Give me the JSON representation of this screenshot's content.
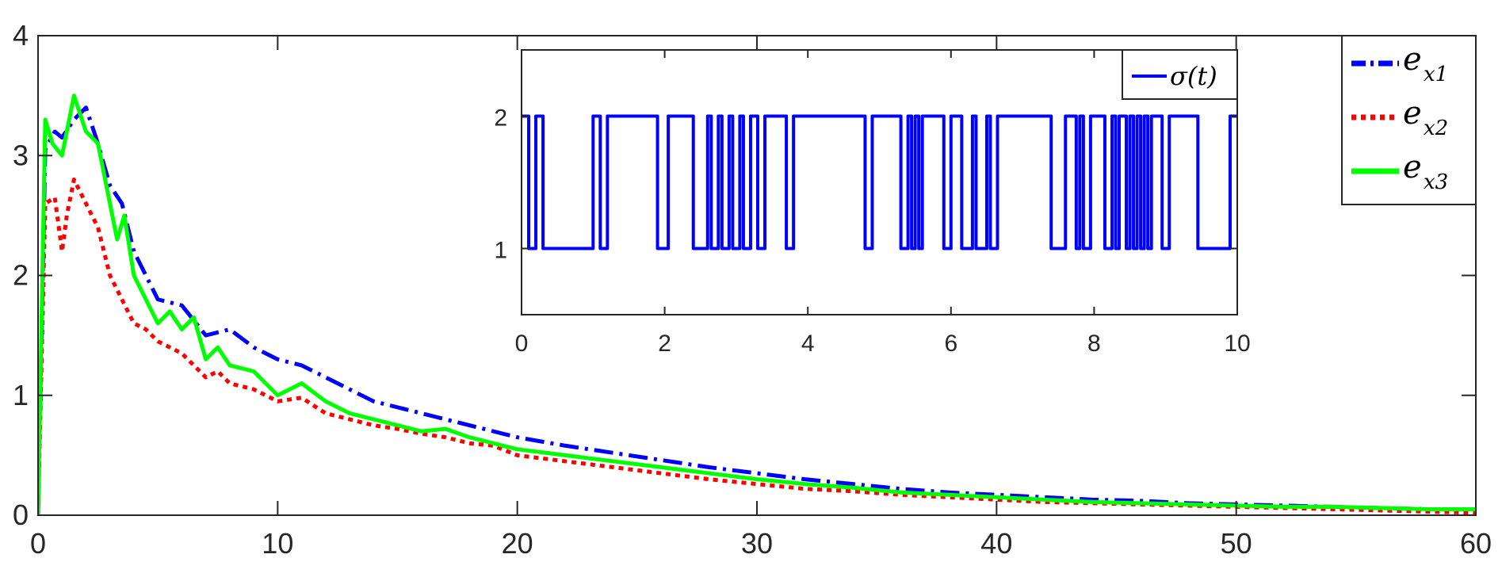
{
  "chart_data": [
    {
      "type": "line",
      "title": "",
      "xlabel": "",
      "ylabel": "",
      "xlim": [
        0,
        60
      ],
      "ylim": [
        0,
        4
      ],
      "xticks": [
        "0",
        "10",
        "20",
        "30",
        "40",
        "50",
        "60"
      ],
      "yticks": [
        "0",
        "1",
        "2",
        "3",
        "4"
      ],
      "grid": false,
      "legend_position": "top-right",
      "series": [
        {
          "name": "e_{x1}",
          "legend_main": "e",
          "legend_sub": "x1",
          "color": "#0000ff",
          "style": "dashdot",
          "x": [
            0,
            0.3,
            0.7,
            1.0,
            1.5,
            2.0,
            2.5,
            3.0,
            3.5,
            4.0,
            4.5,
            5.0,
            6.0,
            7.0,
            8.0,
            9.0,
            10.0,
            11.0,
            12.0,
            13.0,
            14.0,
            15.0,
            16.0,
            17.0,
            18.0,
            19.0,
            20.0,
            22.0,
            24.0,
            26.0,
            28.0,
            30.0,
            32.0,
            34.0,
            36.0,
            38.0,
            40.0,
            42.0,
            44.0,
            46.0,
            48.0,
            50.0,
            52.0,
            54.0,
            56.0,
            58.0,
            60.0
          ],
          "y": [
            0,
            3.05,
            3.2,
            3.15,
            3.3,
            3.4,
            3.1,
            2.75,
            2.6,
            2.2,
            2.0,
            1.8,
            1.75,
            1.5,
            1.55,
            1.4,
            1.3,
            1.25,
            1.15,
            1.05,
            0.95,
            0.9,
            0.85,
            0.8,
            0.75,
            0.7,
            0.65,
            0.58,
            0.52,
            0.46,
            0.4,
            0.35,
            0.3,
            0.26,
            0.22,
            0.19,
            0.17,
            0.15,
            0.13,
            0.12,
            0.1,
            0.09,
            0.08,
            0.07,
            0.06,
            0.05,
            0.05
          ]
        },
        {
          "name": "e_{x2}",
          "legend_main": "e",
          "legend_sub": "x2",
          "color": "#ff0000",
          "style": "dotted",
          "x": [
            0,
            0.3,
            0.7,
            1.0,
            1.2,
            1.5,
            2.0,
            2.5,
            3.0,
            3.5,
            4.0,
            4.5,
            5.0,
            6.0,
            7.0,
            7.5,
            8.0,
            9.0,
            10.0,
            11.0,
            12.0,
            13.0,
            14.0,
            15.0,
            16.0,
            17.0,
            18.0,
            19.0,
            20.0,
            22.0,
            24.0,
            26.0,
            28.0,
            30.0,
            32.0,
            34.0,
            36.0,
            38.0,
            40.0,
            42.0,
            44.0,
            46.0,
            48.0,
            50.0,
            52.0,
            54.0,
            56.0,
            58.0,
            60.0
          ],
          "y": [
            0,
            2.6,
            2.65,
            2.2,
            2.5,
            2.8,
            2.6,
            2.4,
            2.0,
            1.8,
            1.6,
            1.55,
            1.45,
            1.35,
            1.15,
            1.2,
            1.1,
            1.05,
            0.95,
            0.98,
            0.85,
            0.8,
            0.75,
            0.72,
            0.68,
            0.65,
            0.6,
            0.58,
            0.5,
            0.45,
            0.4,
            0.35,
            0.3,
            0.26,
            0.22,
            0.2,
            0.17,
            0.15,
            0.13,
            0.11,
            0.1,
            0.09,
            0.08,
            0.07,
            0.06,
            0.05,
            0.04,
            0.03,
            0.02
          ]
        },
        {
          "name": "e_{x3}",
          "legend_main": "e",
          "legend_sub": "x3",
          "color": "#00ff00",
          "style": "solid",
          "x": [
            0,
            0.3,
            0.6,
            1.0,
            1.5,
            2.0,
            2.5,
            3.0,
            3.3,
            3.6,
            4.0,
            4.5,
            5.0,
            5.5,
            6.0,
            6.5,
            7.0,
            7.5,
            8.0,
            9.0,
            10.0,
            11.0,
            12.0,
            13.0,
            14.0,
            15.0,
            16.0,
            17.0,
            18.0,
            19.0,
            20.0,
            22.0,
            24.0,
            26.0,
            28.0,
            30.0,
            32.0,
            34.0,
            36.0,
            38.0,
            40.0,
            42.0,
            44.0,
            46.0,
            48.0,
            50.0,
            52.0,
            54.0,
            56.0,
            58.0,
            60.0
          ],
          "y": [
            0,
            3.3,
            3.1,
            3.0,
            3.5,
            3.2,
            3.1,
            2.6,
            2.3,
            2.5,
            2.0,
            1.8,
            1.6,
            1.7,
            1.55,
            1.65,
            1.3,
            1.4,
            1.25,
            1.2,
            1.0,
            1.1,
            0.95,
            0.85,
            0.8,
            0.75,
            0.7,
            0.72,
            0.65,
            0.6,
            0.55,
            0.5,
            0.45,
            0.4,
            0.35,
            0.3,
            0.26,
            0.23,
            0.19,
            0.17,
            0.15,
            0.13,
            0.11,
            0.1,
            0.09,
            0.08,
            0.07,
            0.07,
            0.06,
            0.05,
            0.05
          ]
        }
      ]
    },
    {
      "type": "line",
      "title": "",
      "xlabel": "",
      "ylabel": "",
      "xlim": [
        0,
        10
      ],
      "ylim": [
        0.5,
        2.5
      ],
      "xticks": [
        "0",
        "2",
        "4",
        "6",
        "8",
        "10"
      ],
      "yticks": [
        "1",
        "2"
      ],
      "grid": false,
      "legend_position": "top-right",
      "series": [
        {
          "name": "σ(t)",
          "legend_text": "σ(t)",
          "color": "#0000ff",
          "style": "step",
          "x": [
            0,
            0.1,
            0.2,
            0.3,
            0.4,
            1.0,
            1.1,
            1.2,
            1.9,
            2.05,
            2.4,
            2.6,
            2.65,
            2.75,
            2.8,
            2.9,
            2.95,
            3.05,
            3.1,
            3.2,
            3.3,
            3.4,
            3.7,
            3.8,
            4.8,
            4.9,
            5.3,
            5.4,
            5.45,
            5.5,
            5.55,
            5.6,
            5.9,
            6.0,
            6.15,
            6.3,
            6.35,
            6.5,
            6.55,
            6.65,
            7.4,
            7.6,
            7.75,
            7.8,
            7.85,
            7.95,
            8.15,
            8.25,
            8.3,
            8.35,
            8.45,
            8.5,
            8.55,
            8.6,
            8.65,
            8.7,
            8.75,
            8.8,
            8.95,
            9.05,
            9.45,
            9.6,
            9.9,
            10.0
          ],
          "y": [
            2,
            1,
            2,
            1,
            1,
            2,
            1,
            2,
            1,
            2,
            1,
            2,
            1,
            2,
            1,
            2,
            1,
            2,
            1,
            2,
            1,
            2,
            1,
            2,
            1,
            2,
            1,
            2,
            1,
            2,
            1,
            2,
            1,
            2,
            1,
            2,
            1,
            2,
            1,
            2,
            1,
            2,
            1,
            2,
            1,
            2,
            1,
            2,
            1,
            2,
            1,
            2,
            1,
            2,
            1,
            2,
            1,
            2,
            1,
            2,
            1,
            1,
            2,
            2
          ]
        }
      ]
    }
  ]
}
